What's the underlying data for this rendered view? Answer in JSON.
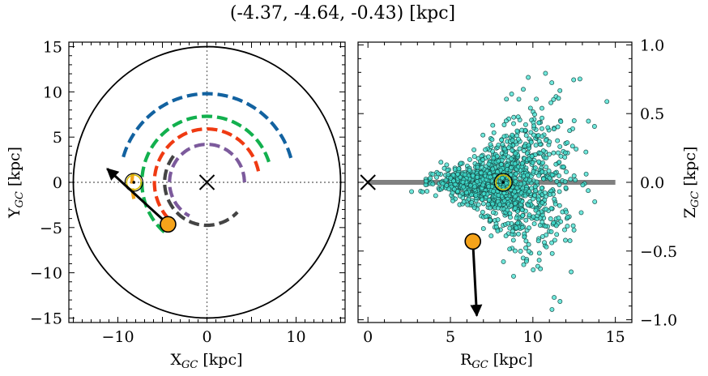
{
  "title": "(-4.37, -4.64, -0.43) [kpc]",
  "colors": {
    "blue": "#1262a0",
    "green": "#12b04e",
    "orange": "#f2a31a",
    "red": "#ef3a12",
    "purple": "#7c5a9c",
    "gray": "#444444",
    "scatter_fill": "#40e0d0",
    "star": "#f5a31a",
    "band": "#808080"
  },
  "chart_data": [
    {
      "type": "line",
      "panel": "left",
      "xlabel": "X_GC [kpc]",
      "ylabel": "Y_GC [kpc]",
      "xlim": [
        -15.5,
        15.5
      ],
      "ylim": [
        -15.5,
        15.5
      ],
      "xticks": [
        -10,
        0,
        10
      ],
      "yticks": [
        -15,
        -10,
        -5,
        0,
        5,
        10,
        15
      ],
      "xtick_labels": [
        "−10",
        "0",
        "10"
      ],
      "ytick_labels": [
        "−15",
        "−10",
        "−5",
        "0",
        "5",
        "10",
        "15"
      ],
      "boundary_circle_radius": 15,
      "sun": {
        "x": -8.2,
        "y": 0.0
      },
      "galactic_center": {
        "x": 0,
        "y": 0
      },
      "star": {
        "x": -4.37,
        "y": -4.64
      },
      "velocity_arrow": {
        "from": [
          -4.37,
          -4.64
        ],
        "to": [
          -11.2,
          1.5
        ]
      },
      "series": [
        {
          "color": "blue",
          "arc": {
            "R": 9.8,
            "angle_from_deg": 16,
            "angle_to_deg": 164
          }
        },
        {
          "color": "green",
          "arc": {
            "R": 7.3,
            "angle_from_deg": 18,
            "angle_to_deg": 230
          }
        },
        {
          "color": "orange",
          "arc": {
            "R": 8.4,
            "angle_from_deg": 173,
            "angle_to_deg": 196
          }
        },
        {
          "color": "red",
          "arc": {
            "R": 5.9,
            "angle_from_deg": 12,
            "angle_to_deg": 228
          }
        },
        {
          "color": "purple",
          "arc": {
            "R": 4.2,
            "angle_from_deg": 0,
            "angle_to_deg": 242
          }
        },
        {
          "color": "gray",
          "arc": {
            "R": 4.75,
            "angle_from_deg": 142,
            "angle_to_deg": 317
          }
        }
      ]
    },
    {
      "type": "scatter",
      "panel": "right",
      "xlabel": "R_GC [kpc]",
      "ylabel": "Z_GC [kpc]",
      "xlim": [
        -0.6,
        16.0
      ],
      "ylim": [
        -1.02,
        1.02
      ],
      "xticks": [
        0,
        5,
        10,
        15
      ],
      "yticks": [
        -1.0,
        -0.5,
        0.0,
        0.5,
        1.0
      ],
      "xtick_labels": [
        "0",
        "5",
        "10",
        "15"
      ],
      "ytick_labels": [
        "−1.0",
        "−0.5",
        "0.0",
        "0.5",
        "1.0"
      ],
      "disk_band": {
        "x": [
          0,
          15
        ],
        "z": 0
      },
      "galactic_center": {
        "x": 0,
        "z": 0
      },
      "sun": {
        "x": 8.2,
        "z": 0.0
      },
      "star": {
        "x": 6.36,
        "z": -0.43
      },
      "velocity_arrow": {
        "from": [
          6.36,
          -0.43
        ],
        "to": [
          6.6,
          -0.97
        ]
      },
      "cloud": {
        "n": 1300,
        "center_R": 8.2,
        "extent_R": [
          2.0,
          15.5
        ],
        "extent_Z": [
          -1.0,
          1.0
        ],
        "seed": 7
      }
    }
  ]
}
